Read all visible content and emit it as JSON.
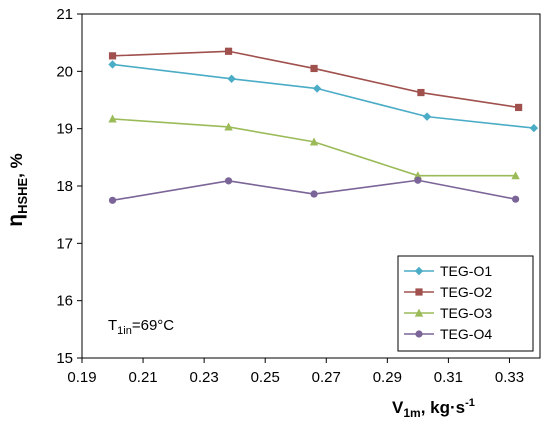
{
  "chart_data": {
    "type": "line",
    "title": "",
    "xlabel": {
      "main": "V",
      "sub": "1m",
      "units": ", kg·s",
      "sup": "-1"
    },
    "ylabel": {
      "main": "η",
      "sub": "HSHE",
      "units": ", %"
    },
    "xlim": [
      0.19,
      0.34
    ],
    "ylim": [
      15,
      21
    ],
    "x_ticks": [
      "0.19",
      "0.21",
      "0.23",
      "0.25",
      "0.27",
      "0.29",
      "0.31",
      "0.33"
    ],
    "y_ticks": [
      "15",
      "16",
      "17",
      "18",
      "19",
      "20",
      "21"
    ],
    "grid": false,
    "legend_position": "bottom-right",
    "annotation": {
      "main": "T",
      "sub": "1in",
      "rest": "=69°C"
    },
    "series": [
      {
        "name": "TEG-O1",
        "color": "#4bacc6",
        "marker": "diamond",
        "x": [
          0.2,
          0.239,
          0.267,
          0.303,
          0.338
        ],
        "y": [
          20.12,
          19.87,
          19.7,
          19.21,
          19.01
        ]
      },
      {
        "name": "TEG-O2",
        "color": "#a0504d",
        "marker": "square",
        "x": [
          0.2,
          0.238,
          0.266,
          0.301,
          0.333
        ],
        "y": [
          20.27,
          20.35,
          20.05,
          19.63,
          19.37
        ]
      },
      {
        "name": "TEG-O3",
        "color": "#9bbb59",
        "marker": "triangle",
        "x": [
          0.2,
          0.238,
          0.266,
          0.3,
          0.332
        ],
        "y": [
          19.17,
          19.03,
          18.77,
          18.18,
          18.18
        ]
      },
      {
        "name": "TEG-O4",
        "color": "#7b6497",
        "marker": "circle",
        "x": [
          0.2,
          0.238,
          0.266,
          0.3,
          0.332
        ],
        "y": [
          17.75,
          18.09,
          17.86,
          18.1,
          17.77
        ]
      }
    ]
  }
}
